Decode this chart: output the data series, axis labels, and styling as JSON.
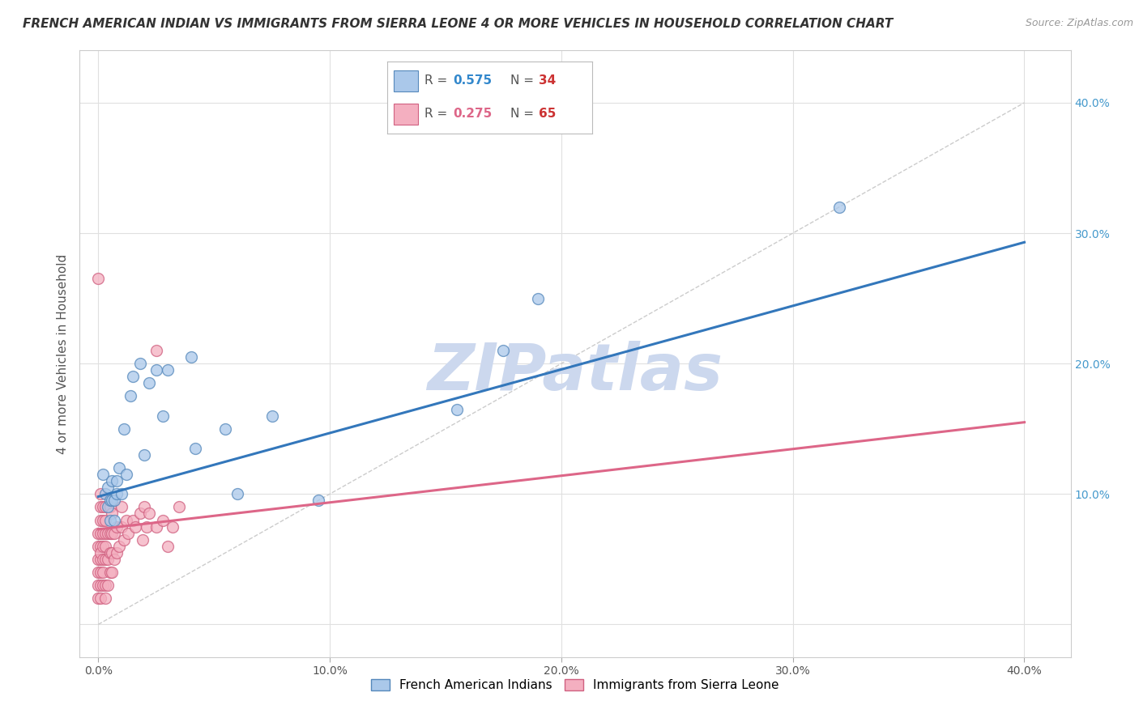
{
  "title": "FRENCH AMERICAN INDIAN VS IMMIGRANTS FROM SIERRA LEONE 4 OR MORE VEHICLES IN HOUSEHOLD CORRELATION CHART",
  "source": "Source: ZipAtlas.com",
  "ylabel": "4 or more Vehicles in Household",
  "x_ticks": [
    0.0,
    0.1,
    0.2,
    0.3,
    0.4
  ],
  "x_tick_labels": [
    "0.0%",
    "10.0%",
    "20.0%",
    "30.0%",
    "40.0%"
  ],
  "y_ticks": [
    0.0,
    0.1,
    0.2,
    0.3,
    0.4
  ],
  "y_tick_labels_right": [
    "",
    "10.0%",
    "20.0%",
    "30.0%",
    "40.0%"
  ],
  "xlim": [
    -0.008,
    0.42
  ],
  "ylim": [
    -0.025,
    0.44
  ],
  "blue_series": {
    "color": "#aac8ea",
    "edge_color": "#5588bb",
    "x": [
      0.002,
      0.003,
      0.004,
      0.004,
      0.005,
      0.005,
      0.006,
      0.006,
      0.007,
      0.007,
      0.008,
      0.008,
      0.009,
      0.01,
      0.011,
      0.012,
      0.014,
      0.015,
      0.018,
      0.02,
      0.022,
      0.025,
      0.028,
      0.03,
      0.04,
      0.042,
      0.055,
      0.06,
      0.075,
      0.095,
      0.155,
      0.175,
      0.32,
      0.19
    ],
    "y": [
      0.115,
      0.1,
      0.09,
      0.105,
      0.08,
      0.095,
      0.095,
      0.11,
      0.08,
      0.095,
      0.1,
      0.11,
      0.12,
      0.1,
      0.15,
      0.115,
      0.175,
      0.19,
      0.2,
      0.13,
      0.185,
      0.195,
      0.16,
      0.195,
      0.205,
      0.135,
      0.15,
      0.1,
      0.16,
      0.095,
      0.165,
      0.21,
      0.32,
      0.25
    ]
  },
  "pink_series": {
    "color": "#f4afc0",
    "edge_color": "#d06080",
    "x": [
      0.0,
      0.0,
      0.0,
      0.0,
      0.0,
      0.0,
      0.001,
      0.001,
      0.001,
      0.001,
      0.001,
      0.001,
      0.001,
      0.001,
      0.001,
      0.001,
      0.002,
      0.002,
      0.002,
      0.002,
      0.002,
      0.002,
      0.002,
      0.003,
      0.003,
      0.003,
      0.003,
      0.003,
      0.003,
      0.003,
      0.004,
      0.004,
      0.004,
      0.005,
      0.005,
      0.005,
      0.005,
      0.006,
      0.006,
      0.006,
      0.006,
      0.007,
      0.007,
      0.008,
      0.008,
      0.009,
      0.01,
      0.01,
      0.011,
      0.012,
      0.013,
      0.015,
      0.016,
      0.018,
      0.019,
      0.02,
      0.021,
      0.022,
      0.025,
      0.028,
      0.03,
      0.032,
      0.035,
      0.0,
      0.025
    ],
    "y": [
      0.02,
      0.03,
      0.04,
      0.05,
      0.06,
      0.07,
      0.02,
      0.03,
      0.04,
      0.05,
      0.06,
      0.07,
      0.08,
      0.09,
      0.1,
      0.055,
      0.03,
      0.04,
      0.05,
      0.06,
      0.07,
      0.08,
      0.09,
      0.02,
      0.03,
      0.05,
      0.06,
      0.07,
      0.08,
      0.09,
      0.03,
      0.05,
      0.07,
      0.04,
      0.055,
      0.07,
      0.09,
      0.04,
      0.055,
      0.07,
      0.085,
      0.05,
      0.07,
      0.055,
      0.075,
      0.06,
      0.075,
      0.09,
      0.065,
      0.08,
      0.07,
      0.08,
      0.075,
      0.085,
      0.065,
      0.09,
      0.075,
      0.085,
      0.075,
      0.08,
      0.06,
      0.075,
      0.09,
      0.265,
      0.21
    ]
  },
  "blue_line": {
    "color": "#3377bb",
    "x_start": 0.0,
    "y_start": 0.098,
    "x_end": 0.4,
    "y_end": 0.293
  },
  "pink_line": {
    "color": "#dd6688",
    "x_start": 0.0,
    "y_start": 0.073,
    "x_end": 0.4,
    "y_end": 0.155
  },
  "diagonal_line": {
    "color": "#cccccc",
    "linestyle": "dashed",
    "x_start": 0.0,
    "y_start": 0.0,
    "x_end": 0.4,
    "y_end": 0.4
  },
  "watermark": "ZIPatlas",
  "watermark_color": "#ccd8ee",
  "background_color": "#ffffff",
  "grid_color": "#e0e0e0",
  "title_fontsize": 11,
  "axis_label_fontsize": 11,
  "source_fontsize": 9,
  "legend_R_color_blue": "#3388cc",
  "legend_R_color_pink": "#dd6688",
  "legend_N_color_blue": "#cc3333",
  "legend_N_color_pink": "#cc3333",
  "bottom_legend_blue_label": "French American Indians",
  "bottom_legend_pink_label": "Immigrants from Sierra Leone"
}
